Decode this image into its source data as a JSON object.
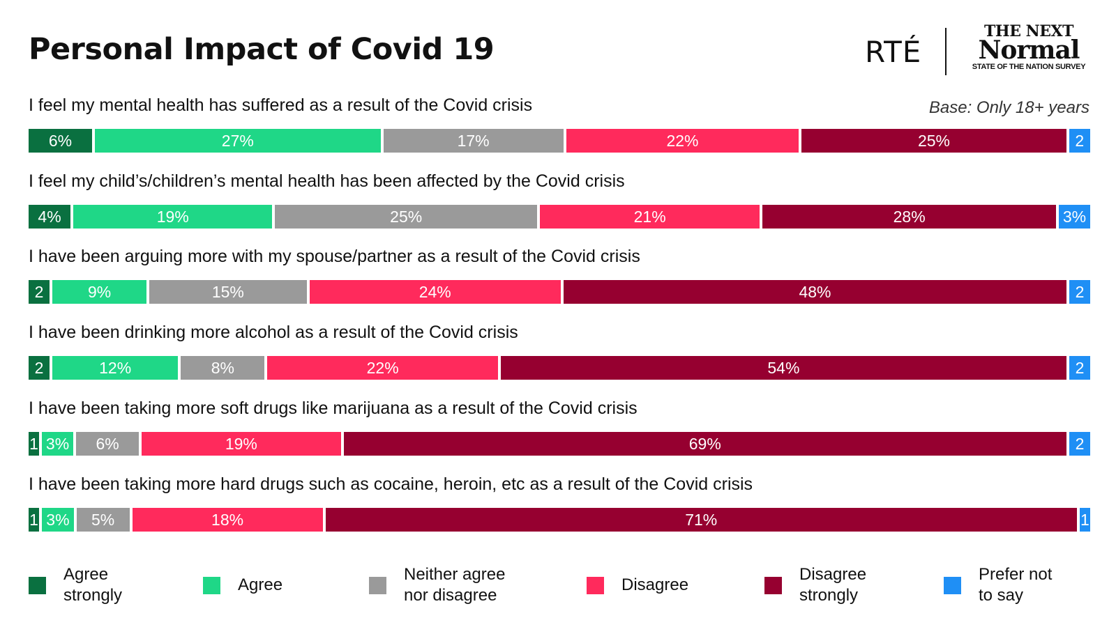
{
  "header": {
    "title": "Personal Impact of Covid 19",
    "logo_rte": "RTÉ",
    "logo_nn_line1": "THE NEXT",
    "logo_nn_line2": "Normal",
    "logo_nn_line3": "STATE OF THE NATION SURVEY",
    "base_note": "Base: Only 18+ years"
  },
  "legend": [
    {
      "label": "Agree strongly",
      "color": "#0a7040"
    },
    {
      "label": "Agree",
      "color": "#1fd787"
    },
    {
      "label": "Neither agree nor disagree",
      "color": "#9a9a9a"
    },
    {
      "label": "Disagree",
      "color": "#ff2a5c"
    },
    {
      "label": "Disagree strongly",
      "color": "#960030"
    },
    {
      "label": "Prefer not to say",
      "color": "#1f8ff5"
    }
  ],
  "chart_data": {
    "type": "bar",
    "orientation": "horizontal-stacked-100",
    "title": "Personal Impact of Covid 19",
    "subtitle": "Base: Only 18+ years",
    "legend_position": "bottom",
    "series_names": [
      "Agree strongly",
      "Agree",
      "Neither agree nor disagree",
      "Disagree",
      "Disagree strongly",
      "Prefer not to say"
    ],
    "categories": [
      "I feel my mental health has suffered as a result of the Covid crisis",
      "I feel my child’s/children’s mental health has been affected by the Covid crisis",
      "I have been arguing more with my spouse/partner as a result of the Covid crisis",
      "I have been drinking more alcohol as a result of the Covid crisis",
      "I have been taking more soft drugs like marijuana as a result of the Covid crisis",
      "I have been taking more hard drugs such as cocaine, heroin, etc as a result of the Covid crisis"
    ],
    "rows": [
      {
        "values": [
          6,
          27,
          17,
          22,
          25,
          2
        ],
        "labels": [
          "6%",
          "27%",
          "17%",
          "22%",
          "25%",
          "2"
        ]
      },
      {
        "values": [
          4,
          19,
          25,
          21,
          28,
          3
        ],
        "labels": [
          "4%",
          "19%",
          "25%",
          "21%",
          "28%",
          "3%"
        ]
      },
      {
        "values": [
          2,
          9,
          15,
          24,
          48,
          2
        ],
        "labels": [
          "2",
          "9%",
          "15%",
          "24%",
          "48%",
          "2"
        ]
      },
      {
        "values": [
          2,
          12,
          8,
          22,
          54,
          2
        ],
        "labels": [
          "2",
          "12%",
          "8%",
          "22%",
          "54%",
          "2"
        ]
      },
      {
        "values": [
          1,
          3,
          6,
          19,
          69,
          2
        ],
        "labels": [
          "1",
          "3%",
          "6%",
          "19%",
          "69%",
          "2"
        ]
      },
      {
        "values": [
          1,
          3,
          5,
          18,
          71,
          1
        ],
        "labels": [
          "1",
          "3%",
          "5%",
          "18%",
          "71%",
          "1"
        ]
      }
    ],
    "xlim": [
      0,
      100
    ],
    "unit": "%"
  }
}
